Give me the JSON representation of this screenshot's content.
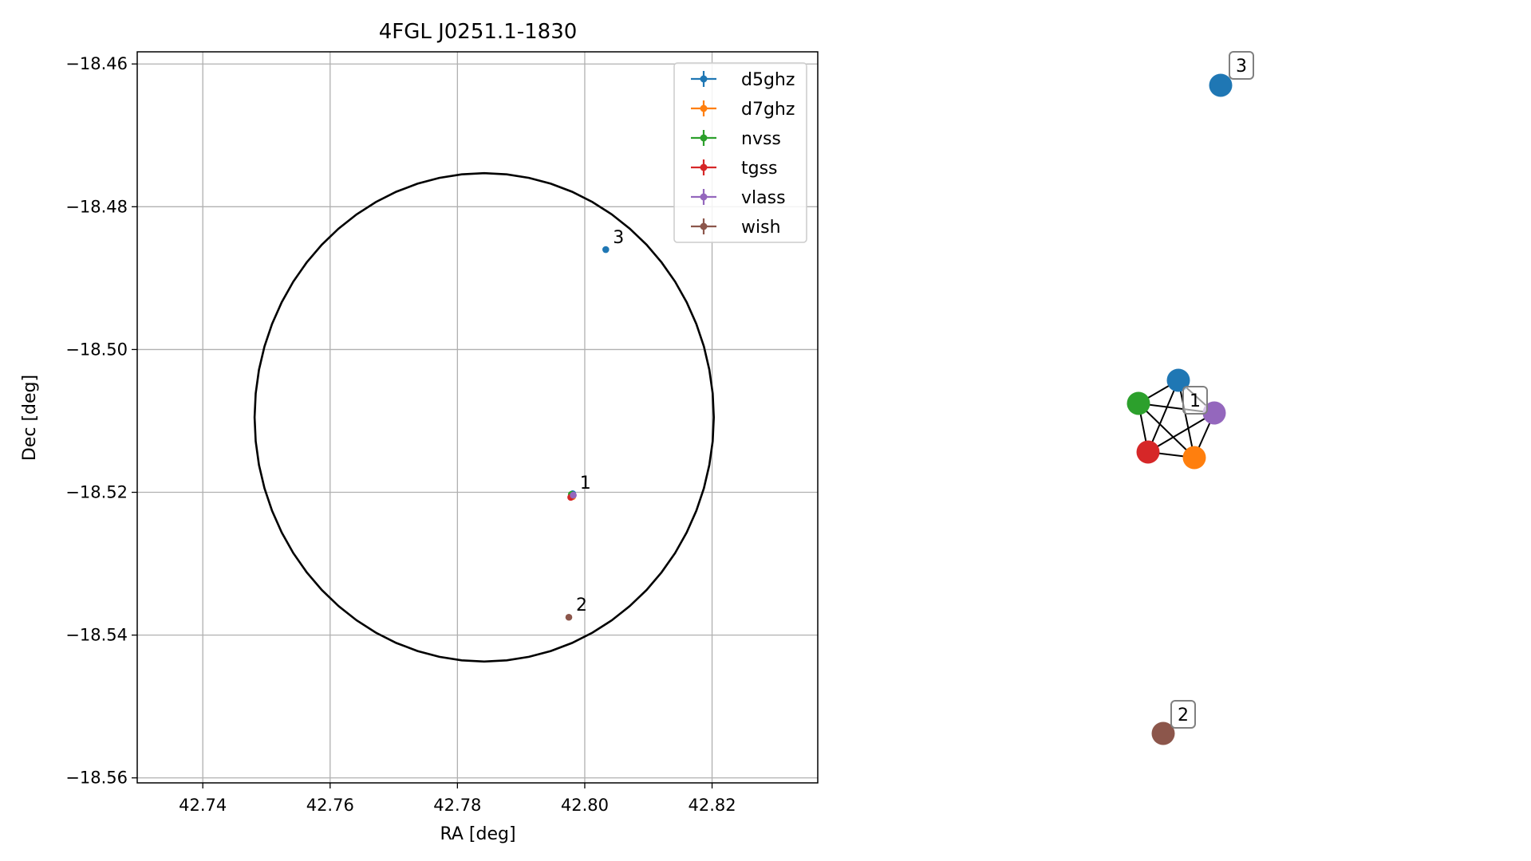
{
  "chart_data": [
    {
      "type": "scatter",
      "title": "4FGL J0251.1-1830",
      "xlabel": "RA [deg]",
      "ylabel": "Dec [deg]",
      "xlim": [
        42.7297,
        42.8366
      ],
      "ylim": [
        -18.5607,
        -18.4583
      ],
      "xticks": [
        42.74,
        42.76,
        42.78,
        42.8,
        42.82
      ],
      "xtick_labels": [
        "42.74",
        "42.76",
        "42.78",
        "42.80",
        "42.82"
      ],
      "yticks": [
        -18.46,
        -18.48,
        -18.5,
        -18.52,
        -18.54,
        -18.56
      ],
      "ytick_labels": [
        "−18.46",
        "−18.48",
        "−18.50",
        "−18.52",
        "−18.54",
        "−18.56"
      ],
      "grid": true,
      "legend_position": "top-right",
      "colors": {
        "d5ghz": "#1f77b4",
        "d7ghz": "#ff7f0e",
        "nvss": "#2ca02c",
        "tgss": "#d62728",
        "vlass": "#9467bd",
        "wish": "#8c564b"
      },
      "series": [
        {
          "name": "d5ghz",
          "points": [
            {
              "x": 42.7981,
              "y": -18.5202
            },
            {
              "x": 42.8033,
              "y": -18.486
            }
          ]
        },
        {
          "name": "d7ghz",
          "points": [
            {
              "x": 42.7981,
              "y": -18.5206
            }
          ]
        },
        {
          "name": "nvss",
          "points": [
            {
              "x": 42.7979,
              "y": -18.5203
            }
          ]
        },
        {
          "name": "tgss",
          "points": [
            {
              "x": 42.7978,
              "y": -18.5207
            }
          ]
        },
        {
          "name": "vlass",
          "points": [
            {
              "x": 42.7982,
              "y": -18.5204
            }
          ]
        },
        {
          "name": "wish",
          "points": [
            {
              "x": 42.7975,
              "y": -18.5375
            }
          ]
        }
      ],
      "circle": {
        "center_x": 42.7842,
        "center_y": -18.5095,
        "radius_deg": 0.0342
      },
      "annotations": [
        {
          "text": "1",
          "x": 42.7981,
          "y": -18.5204
        },
        {
          "text": "2",
          "x": 42.7975,
          "y": -18.5375
        },
        {
          "text": "3",
          "x": 42.8033,
          "y": -18.486
        }
      ]
    },
    {
      "type": "network",
      "nodes": [
        {
          "series": "d5ghz",
          "group": "1"
        },
        {
          "series": "d7ghz",
          "group": "1"
        },
        {
          "series": "nvss",
          "group": "1"
        },
        {
          "series": "tgss",
          "group": "1"
        },
        {
          "series": "vlass",
          "group": "1"
        },
        {
          "series": "d5ghz",
          "group": "3"
        },
        {
          "series": "wish",
          "group": "2"
        }
      ],
      "edges": [
        [
          "d5ghz",
          "d7ghz"
        ],
        [
          "d5ghz",
          "nvss"
        ],
        [
          "d5ghz",
          "tgss"
        ],
        [
          "d5ghz",
          "vlass"
        ],
        [
          "d7ghz",
          "nvss"
        ],
        [
          "d7ghz",
          "tgss"
        ],
        [
          "d7ghz",
          "vlass"
        ],
        [
          "nvss",
          "tgss"
        ],
        [
          "nvss",
          "vlass"
        ],
        [
          "tgss",
          "vlass"
        ]
      ],
      "group_labels": [
        "1",
        "2",
        "3"
      ]
    }
  ]
}
